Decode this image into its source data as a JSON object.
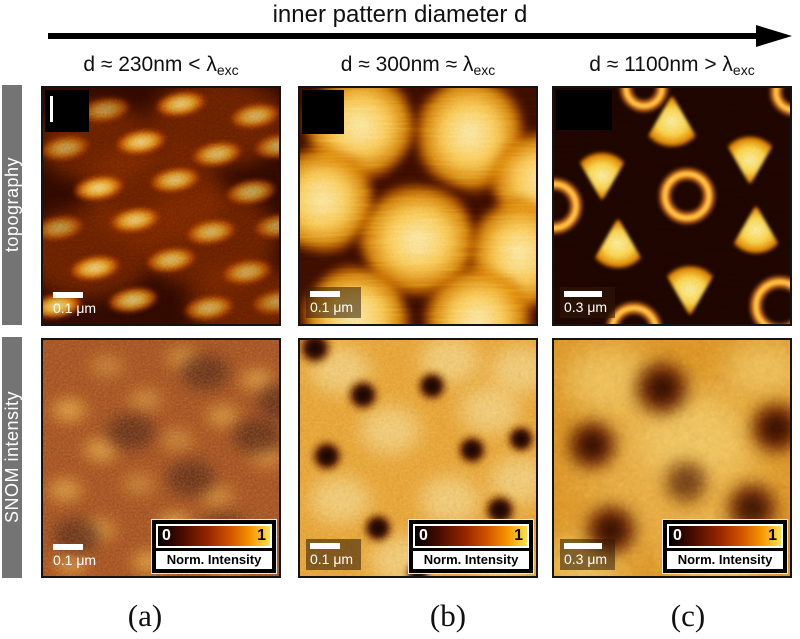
{
  "figure_title": "inner pattern diameter d",
  "row_labels": {
    "topography": "topography",
    "snom": "SNOM intensity"
  },
  "columns": [
    {
      "header_main": "d ≈ 230nm < λ",
      "header_sub": "exc",
      "topo_scalebar": "0.1 μm",
      "snom_scalebar": "0.1 μm",
      "panel_label": "(a)"
    },
    {
      "header_main": "d ≈ 300nm ≈ λ",
      "header_sub": "exc",
      "topo_scalebar": "0.1 μm",
      "snom_scalebar": "0.1 μm",
      "panel_label": "(b)"
    },
    {
      "header_main": "d ≈ 1100nm > λ",
      "header_sub": "exc",
      "topo_scalebar": "0.3 μm",
      "snom_scalebar": "0.3 μm",
      "panel_label": "(c)"
    }
  ],
  "legend": {
    "min_label": "0",
    "max_label": "1",
    "title": "Norm. Intensity"
  },
  "icons": {
    "direction_arrow": "→"
  },
  "colors": {
    "sidebar_gray": "#747474",
    "scalebar_white": "#ffffff",
    "arrow_black": "#000000",
    "colormap": [
      "#000000",
      "#4a0c00",
      "#962600",
      "#d35500",
      "#f59300",
      "#ffe14e"
    ]
  }
}
